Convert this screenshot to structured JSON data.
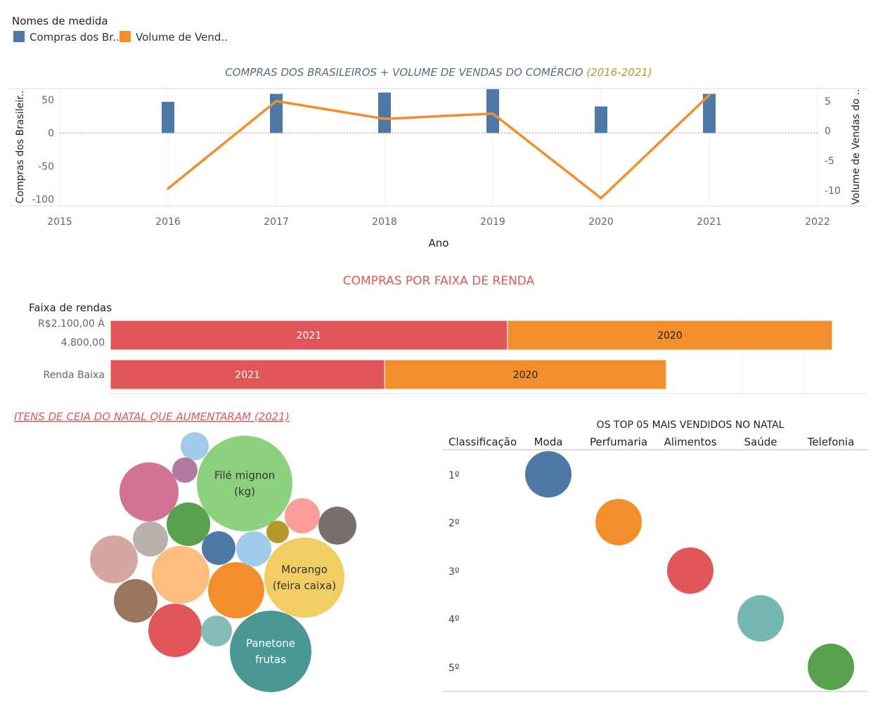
{
  "legend": {
    "title": "Nomes de medida",
    "items": [
      {
        "label": "Compras dos Br..",
        "color": "#4e79a7"
      },
      {
        "label": "Volume de Vend..",
        "color": "#f28e2b"
      }
    ]
  },
  "chart_data": [
    {
      "type": "bar",
      "title": "COMPRAS DOS BRASILEIROS + VOLUME DE VENDAS DO COMÉRCIO",
      "title_suffix": "(2016-2021)",
      "xlabel": "Ano",
      "ylabel": "Compras dos Brasileir..",
      "y2label": "Volume de Vendas do ..",
      "x_ticks": [
        "2015",
        "2016",
        "2017",
        "2018",
        "2019",
        "2020",
        "2021",
        "2022"
      ],
      "xlim": [
        2015,
        2022
      ],
      "ylim": [
        -110,
        67
      ],
      "y_ticks": [
        50,
        0,
        -50,
        -100
      ],
      "y2lim": [
        -12.6,
        7.1
      ],
      "y2_ticks": [
        5,
        0,
        -5,
        -10
      ],
      "series": [
        {
          "name": "Compras dos Br..",
          "kind": "bar",
          "axis": "left",
          "color": "#4e79a7",
          "x": [
            2016,
            2017,
            2018,
            2019,
            2020,
            2021
          ],
          "values": [
            47,
            59,
            61,
            66,
            40,
            59
          ]
        },
        {
          "name": "Volume de Vend..",
          "kind": "line",
          "axis": "right",
          "color": "#f28e2b",
          "x": [
            2016,
            2017,
            2018,
            2019,
            2020,
            2021
          ],
          "values": [
            -9.7,
            5.0,
            2.0,
            2.9,
            -11.3,
            6.0
          ]
        }
      ]
    },
    {
      "type": "bar",
      "orientation": "horizontal",
      "stacked": true,
      "title": "COMPRAS POR FAIXA DE RENDA",
      "row_header": "Faixa de rendas",
      "categories": [
        [
          "R$2.100,00 À",
          "4.800,00"
        ],
        [
          "Renda Baixa"
        ]
      ],
      "series": [
        {
          "name": "2021",
          "color": "#e15759",
          "values": [
            55,
            38
          ]
        },
        {
          "name": "2020",
          "color": "#f28e2b",
          "values": [
            45,
            39
          ]
        }
      ]
    },
    {
      "type": "bubble",
      "title": "ITENS DE CEIA DO NATAL QUE AUMENTARAM (2021)",
      "items": [
        {
          "label": [
            "Filé mignon",
            "(kg)"
          ],
          "size": 68,
          "color": "#8cd17d"
        },
        {
          "label": [
            "Morango",
            "(feira caixa)"
          ],
          "size": 57,
          "color": "#f1ce63"
        },
        {
          "label": [
            "Panetone",
            "frutas"
          ],
          "size": 58,
          "color": "#499894"
        },
        {
          "label": [],
          "size": 42,
          "color": "#d37295"
        },
        {
          "label": [],
          "size": 41,
          "color": "#ffbe7d"
        },
        {
          "label": [],
          "size": 40,
          "color": "#f28e2b"
        },
        {
          "label": [],
          "size": 38,
          "color": "#e15759"
        },
        {
          "label": [],
          "size": 34,
          "color": "#d4a6a0"
        },
        {
          "label": [],
          "size": 31,
          "color": "#59a14f"
        },
        {
          "label": [],
          "size": 31,
          "color": "#9c755f"
        },
        {
          "label": [],
          "size": 27,
          "color": "#79706e"
        },
        {
          "label": [],
          "size": 25,
          "color": "#a0cbe8"
        },
        {
          "label": [],
          "size": 25,
          "color": "#ff9d9a"
        },
        {
          "label": [],
          "size": 25,
          "color": "#bab0ac"
        },
        {
          "label": [],
          "size": 24,
          "color": "#4e79a7"
        },
        {
          "label": [],
          "size": 22,
          "color": "#86bcb6"
        },
        {
          "label": [],
          "size": 20,
          "color": "#a0cbe8"
        },
        {
          "label": [],
          "size": 18,
          "color": "#b07aa1"
        },
        {
          "label": [],
          "size": 16,
          "color": "#b6992d"
        }
      ]
    },
    {
      "type": "scatter",
      "title": "OS TOP 05 MAIS VENDIDOS NO NATAL",
      "row_header": "Classificação",
      "columns": [
        "Moda",
        "Perfumaria",
        "Alimentos",
        "Saúde",
        "Telefonia"
      ],
      "rows": [
        "1º",
        "2º",
        "3º",
        "4º",
        "5º"
      ],
      "points": [
        {
          "column": "Moda",
          "rank": "1º",
          "color": "#4e79a7"
        },
        {
          "column": "Perfumaria",
          "rank": "2º",
          "color": "#f28e2b"
        },
        {
          "column": "Alimentos",
          "rank": "3º",
          "color": "#e15759"
        },
        {
          "column": "Saúde",
          "rank": "4º",
          "color": "#76b7b2"
        },
        {
          "column": "Telefonia",
          "rank": "5º",
          "color": "#59a14f"
        }
      ]
    }
  ]
}
